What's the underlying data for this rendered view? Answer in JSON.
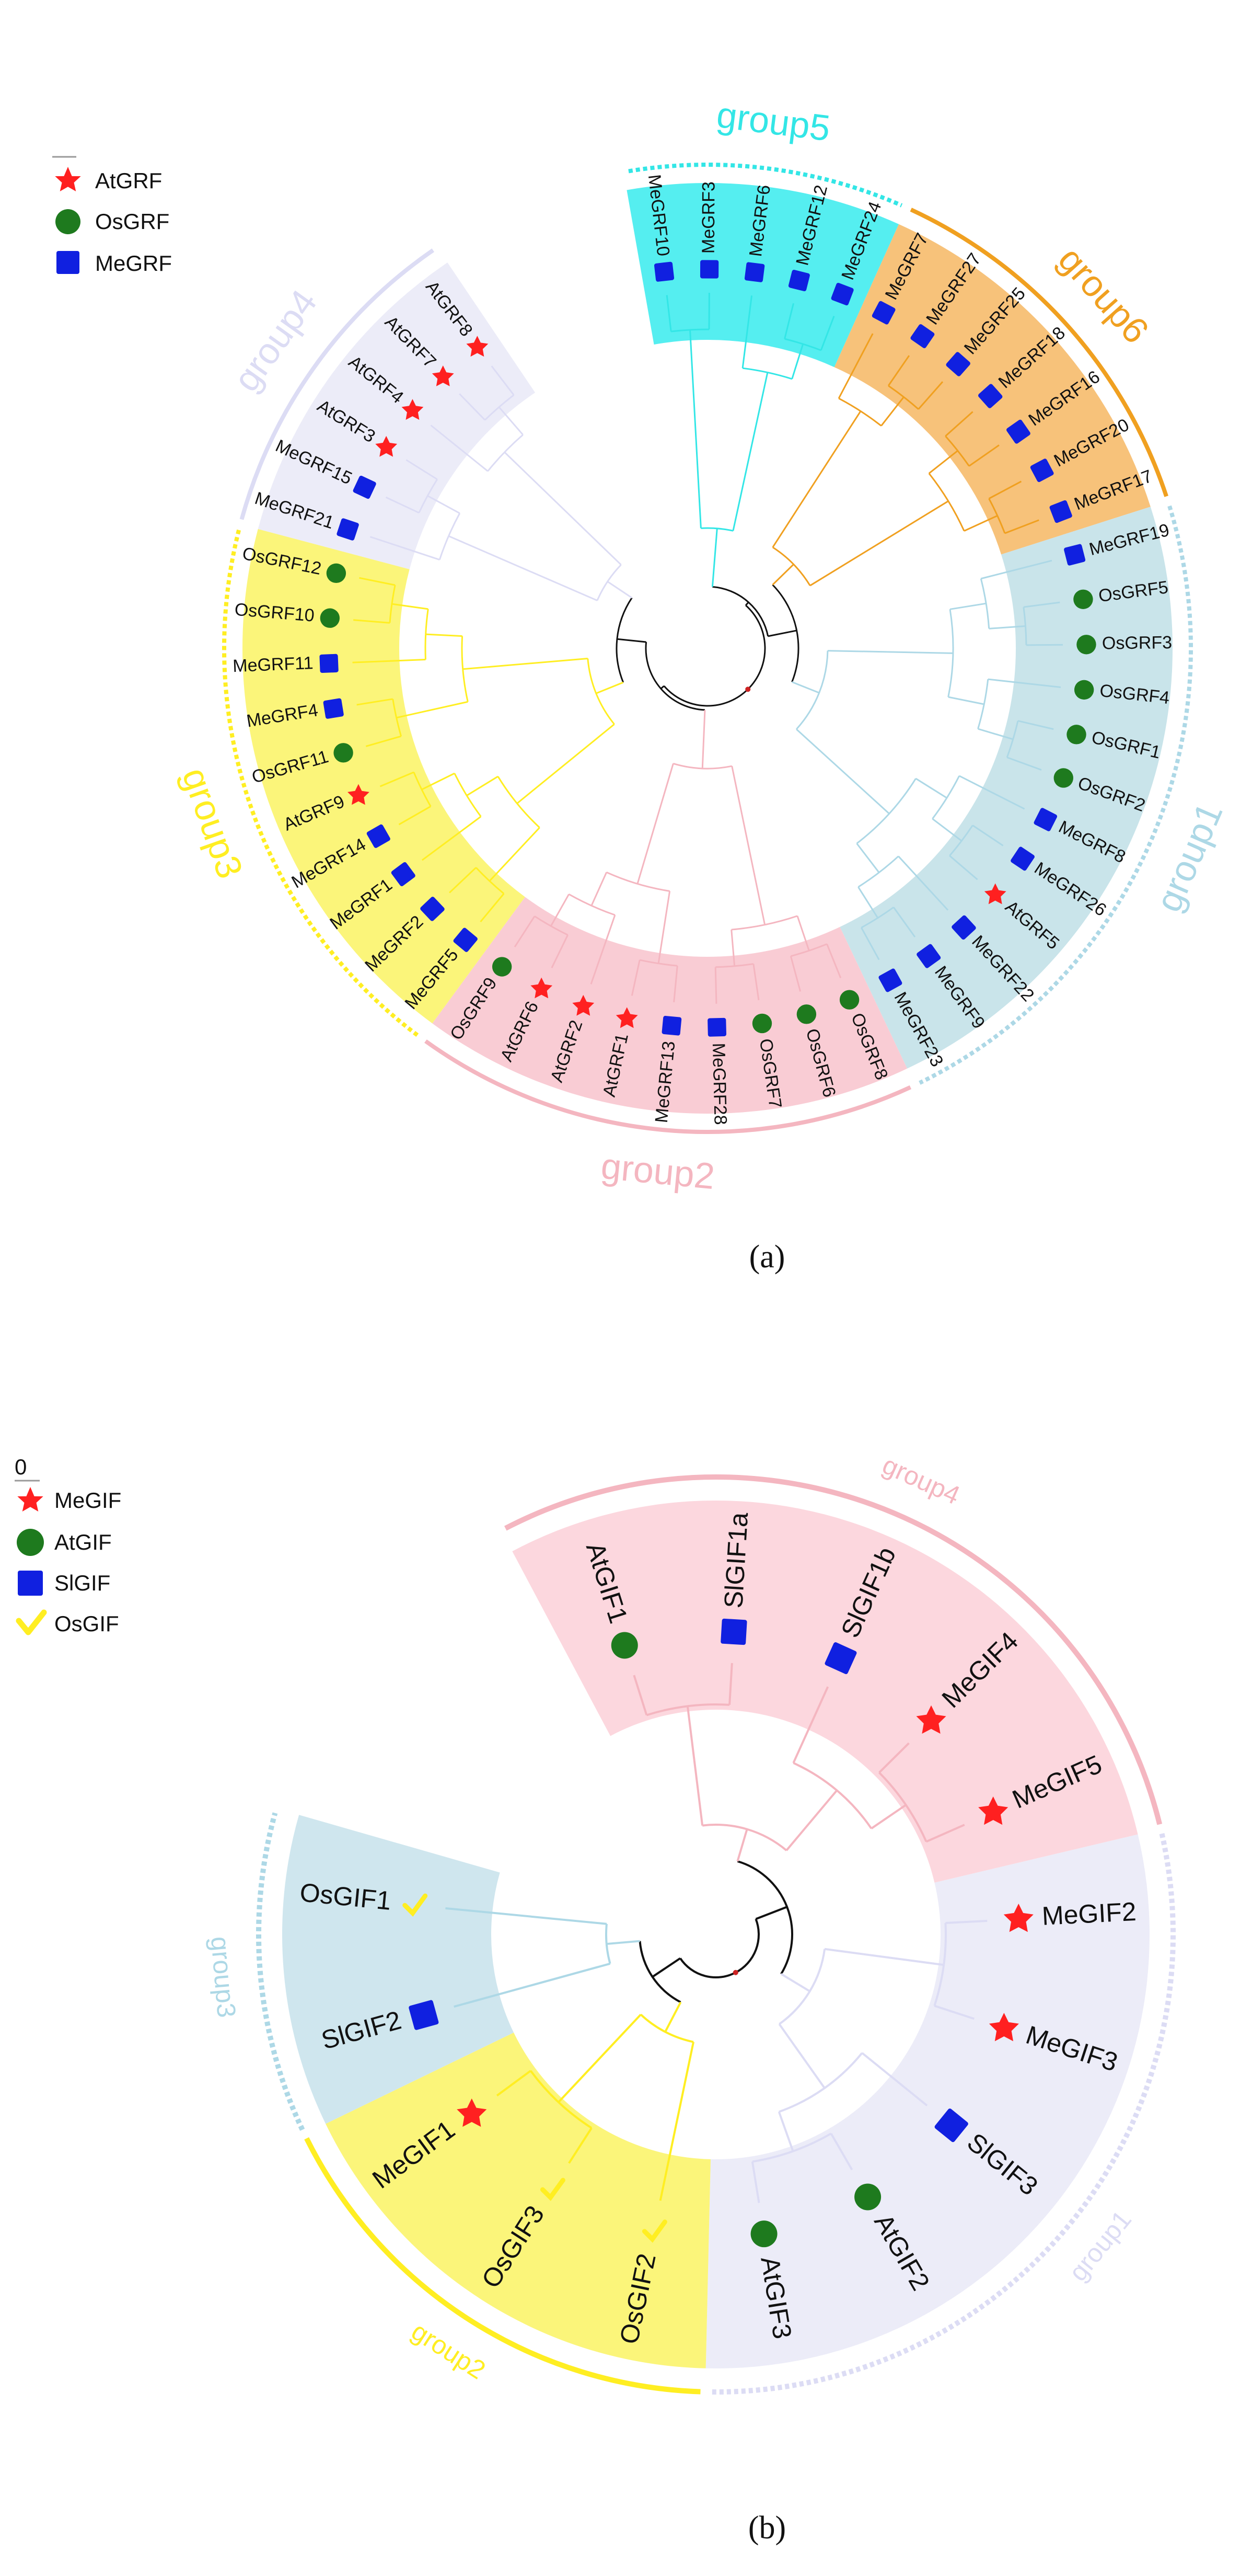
{
  "panel_a": {
    "label": "(a)",
    "scale_label": "",
    "legend": [
      {
        "label": "AtGRF",
        "marker": "star-icon",
        "color": "#ff2020"
      },
      {
        "label": "OsGRF",
        "marker": "circle-icon",
        "color": "#1e7a1e"
      },
      {
        "label": "MeGRF",
        "marker": "square-icon",
        "color": "#1020e0"
      }
    ],
    "groups": [
      {
        "name": "group5",
        "color": "#33e6e6",
        "fill": "#55eef0",
        "dashed": true
      },
      {
        "name": "group6",
        "color": "#f0a020",
        "fill": "#f7c27a",
        "dashed": false
      },
      {
        "name": "group1",
        "color": "#add8e6",
        "fill": "#c9e4ea",
        "dashed": true
      },
      {
        "name": "group2",
        "color": "#f4b6c0",
        "fill": "#f9ccd4",
        "dashed": false
      },
      {
        "name": "group3",
        "color": "#ffee22",
        "fill": "#fbf57a",
        "dashed": true
      },
      {
        "name": "group4",
        "color": "#dcdcf4",
        "fill": "#ececf8",
        "dashed": false
      }
    ],
    "leaves": [
      {
        "label": "MeGRF10",
        "species": "MeGRF",
        "group": "group5"
      },
      {
        "label": "MeGRF3",
        "species": "MeGRF",
        "group": "group5"
      },
      {
        "label": "MeGRF6",
        "species": "MeGRF",
        "group": "group5"
      },
      {
        "label": "MeGRF12",
        "species": "MeGRF",
        "group": "group5"
      },
      {
        "label": "MeGRF24",
        "species": "MeGRF",
        "group": "group5"
      },
      {
        "label": "MeGRF7",
        "species": "MeGRF",
        "group": "group6"
      },
      {
        "label": "MeGRF27",
        "species": "MeGRF",
        "group": "group6"
      },
      {
        "label": "MeGRF25",
        "species": "MeGRF",
        "group": "group6"
      },
      {
        "label": "MeGRF18",
        "species": "MeGRF",
        "group": "group6"
      },
      {
        "label": "MeGRF16",
        "species": "MeGRF",
        "group": "group6"
      },
      {
        "label": "MeGRF20",
        "species": "MeGRF",
        "group": "group6"
      },
      {
        "label": "MeGRF17",
        "species": "MeGRF",
        "group": "group6"
      },
      {
        "label": "MeGRF19",
        "species": "MeGRF",
        "group": "group1"
      },
      {
        "label": "OsGRF5",
        "species": "OsGRF",
        "group": "group1"
      },
      {
        "label": "OsGRF3",
        "species": "OsGRF",
        "group": "group1"
      },
      {
        "label": "OsGRF4",
        "species": "OsGRF",
        "group": "group1"
      },
      {
        "label": "OsGRF1",
        "species": "OsGRF",
        "group": "group1"
      },
      {
        "label": "OsGRF2",
        "species": "OsGRF",
        "group": "group1"
      },
      {
        "label": "MeGRF8",
        "species": "MeGRF",
        "group": "group1"
      },
      {
        "label": "MeGRF26",
        "species": "MeGRF",
        "group": "group1"
      },
      {
        "label": "AtGRF5",
        "species": "AtGRF",
        "group": "group1"
      },
      {
        "label": "MeGRF22",
        "species": "MeGRF",
        "group": "group1"
      },
      {
        "label": "MeGRF9",
        "species": "MeGRF",
        "group": "group1"
      },
      {
        "label": "MeGRF23",
        "species": "MeGRF",
        "group": "group1"
      },
      {
        "label": "OsGRF8",
        "species": "OsGRF",
        "group": "group2"
      },
      {
        "label": "OsGRF6",
        "species": "OsGRF",
        "group": "group2"
      },
      {
        "label": "OsGRF7",
        "species": "OsGRF",
        "group": "group2"
      },
      {
        "label": "MeGRF28",
        "species": "MeGRF",
        "group": "group2"
      },
      {
        "label": "MeGRF13",
        "species": "MeGRF",
        "group": "group2"
      },
      {
        "label": "AtGRF1",
        "species": "AtGRF",
        "group": "group2"
      },
      {
        "label": "AtGRF2",
        "species": "AtGRF",
        "group": "group2"
      },
      {
        "label": "AtGRF6",
        "species": "AtGRF",
        "group": "group2"
      },
      {
        "label": "OsGRF9",
        "species": "OsGRF",
        "group": "group2"
      },
      {
        "label": "MeGRF5",
        "species": "MeGRF",
        "group": "group3"
      },
      {
        "label": "MeGRF2",
        "species": "MeGRF",
        "group": "group3"
      },
      {
        "label": "MeGRF1",
        "species": "MeGRF",
        "group": "group3"
      },
      {
        "label": "MeGRF14",
        "species": "MeGRF",
        "group": "group3"
      },
      {
        "label": "AtGRF9",
        "species": "AtGRF",
        "group": "group3"
      },
      {
        "label": "OsGRF11",
        "species": "OsGRF",
        "group": "group3"
      },
      {
        "label": "MeGRF4",
        "species": "MeGRF",
        "group": "group3"
      },
      {
        "label": "MeGRF11",
        "species": "MeGRF",
        "group": "group3"
      },
      {
        "label": "OsGRF10",
        "species": "OsGRF",
        "group": "group3"
      },
      {
        "label": "OsGRF12",
        "species": "OsGRF",
        "group": "group3"
      },
      {
        "label": "MeGRF21",
        "species": "MeGRF",
        "group": "group4"
      },
      {
        "label": "MeGRF15",
        "species": "MeGRF",
        "group": "group4"
      },
      {
        "label": "AtGRF3",
        "species": "AtGRF",
        "group": "group4"
      },
      {
        "label": "AtGRF4",
        "species": "AtGRF",
        "group": "group4"
      },
      {
        "label": "AtGRF7",
        "species": "AtGRF",
        "group": "group4"
      },
      {
        "label": "AtGRF8",
        "species": "AtGRF",
        "group": "group4"
      }
    ]
  },
  "panel_b": {
    "label": "(b)",
    "scale_label": "0",
    "legend": [
      {
        "label": "MeGIF",
        "marker": "star-icon",
        "color": "#ff2020"
      },
      {
        "label": "AtGIF",
        "marker": "circle-icon",
        "color": "#1e7a1e"
      },
      {
        "label": "SlGIF",
        "marker": "square-icon",
        "color": "#1020e0"
      },
      {
        "label": "OsGIF",
        "marker": "check-icon",
        "color": "#ffee22"
      }
    ],
    "groups": [
      {
        "name": "group4",
        "color": "#f4b6c0",
        "fill": "#fcd7de",
        "dashed": false
      },
      {
        "name": "group1",
        "color": "#dcdcf4",
        "fill": "#ececf8",
        "dashed": true
      },
      {
        "name": "group2",
        "color": "#ffee22",
        "fill": "#fbf57a",
        "dashed": false
      },
      {
        "name": "group3",
        "color": "#add8e6",
        "fill": "#cfe6ee",
        "dashed": true
      }
    ],
    "leaves": [
      {
        "label": "AtGIF1",
        "species": "AtGIF",
        "group": "group4"
      },
      {
        "label": "SlGIF1a",
        "species": "SlGIF",
        "group": "group4"
      },
      {
        "label": "SlGIF1b",
        "species": "SlGIF",
        "group": "group4"
      },
      {
        "label": "MeGIF4",
        "species": "MeGIF",
        "group": "group4"
      },
      {
        "label": "MeGIF5",
        "species": "MeGIF",
        "group": "group4"
      },
      {
        "label": "MeGIF2",
        "species": "MeGIF",
        "group": "group1"
      },
      {
        "label": "MeGIF3",
        "species": "MeGIF",
        "group": "group1"
      },
      {
        "label": "SlGIF3",
        "species": "SlGIF",
        "group": "group1"
      },
      {
        "label": "AtGIF2",
        "species": "AtGIF",
        "group": "group1"
      },
      {
        "label": "AtGIF3",
        "species": "AtGIF",
        "group": "group1"
      },
      {
        "label": "OsGIF2",
        "species": "OsGIF",
        "group": "group2"
      },
      {
        "label": "OsGIF3",
        "species": "OsGIF",
        "group": "group2"
      },
      {
        "label": "MeGIF1",
        "species": "MeGIF",
        "group": "group2"
      },
      {
        "label": "SlGIF2",
        "species": "SlGIF",
        "group": "group3"
      },
      {
        "label": "OsGIF1",
        "species": "OsGIF",
        "group": "group3"
      }
    ]
  }
}
